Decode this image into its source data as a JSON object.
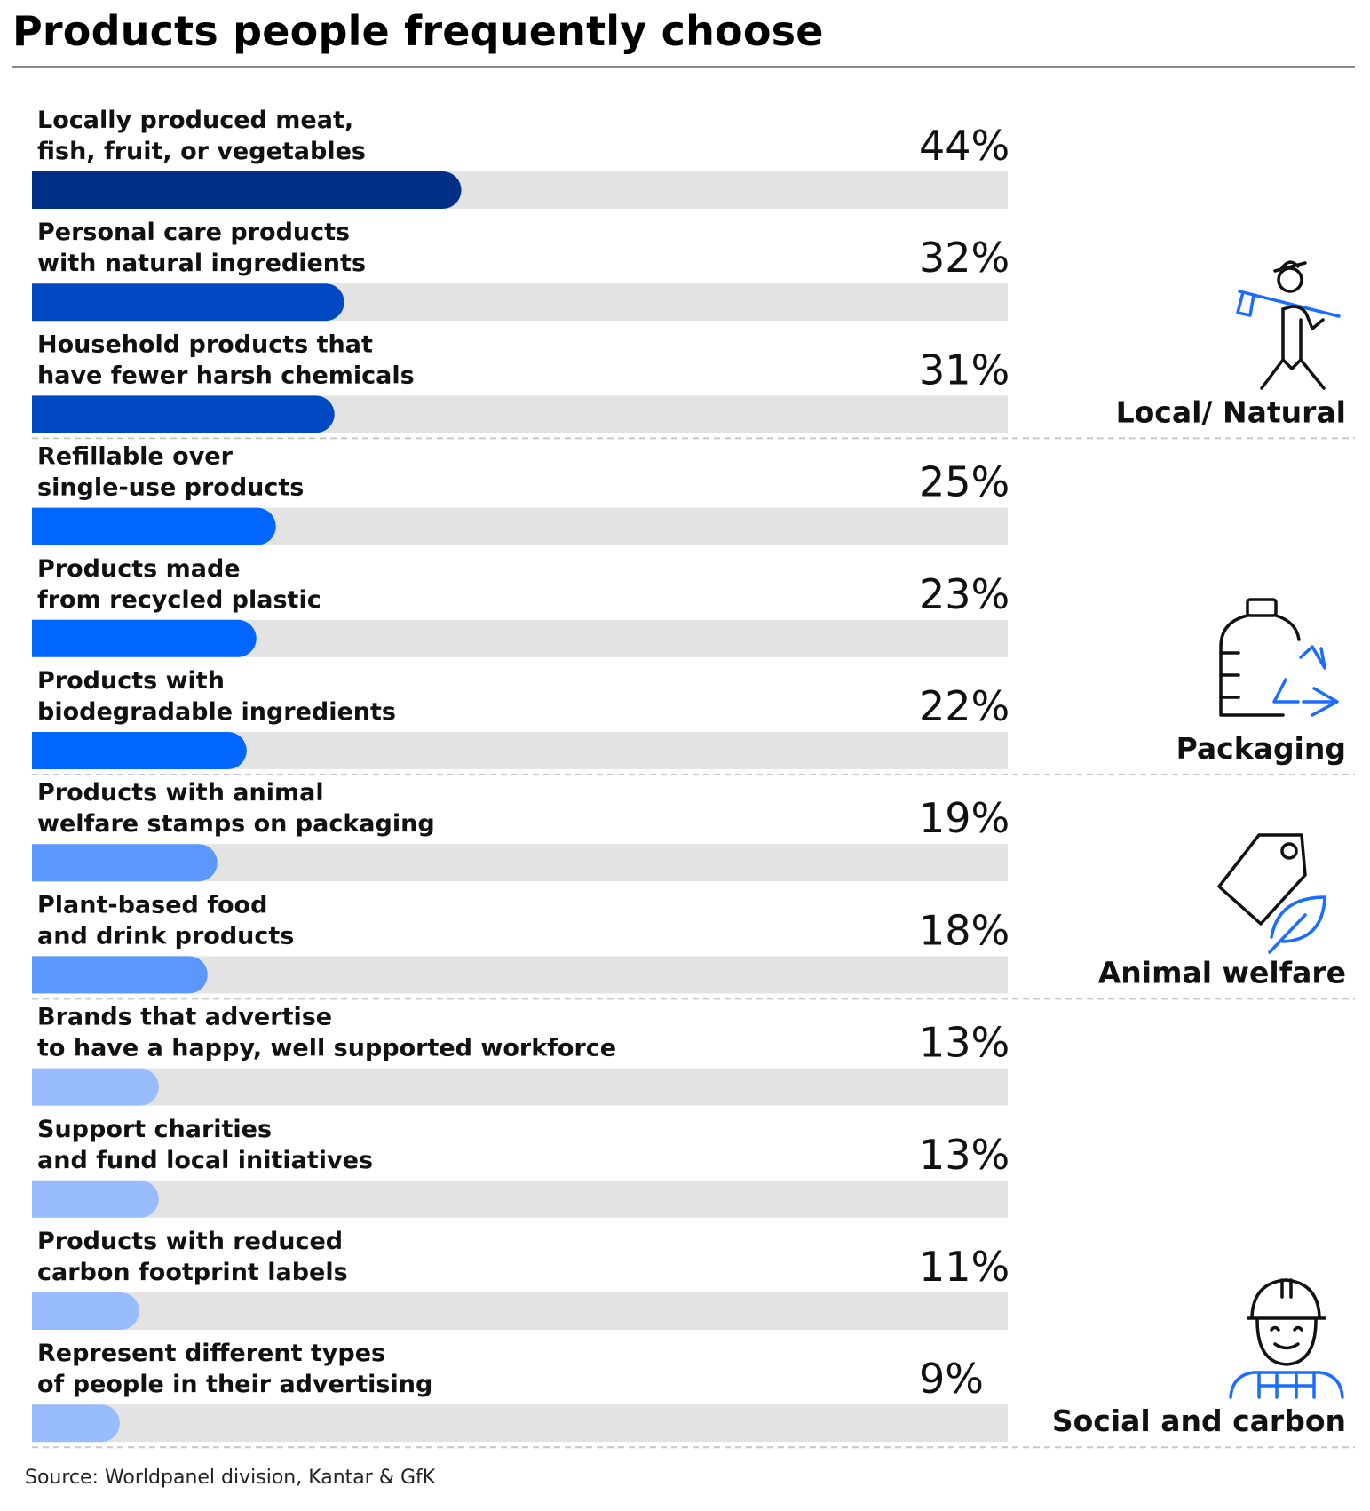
{
  "title": "Products people frequently choose",
  "source": "Source: Worldpanel division, Kantar & GfK",
  "colors": {
    "track": "#e3e3e3",
    "local_natural": [
      "#002f86",
      "#0049c2",
      "#0049c2"
    ],
    "packaging": "#0066ff",
    "animal_welfare": "#5c97ff",
    "social_carbon": "#99bcff",
    "icon_dark": "#111111",
    "icon_blue": "#1a6dff"
  },
  "chart_data": {
    "type": "bar",
    "orientation": "horizontal",
    "unit": "%",
    "xlim": [
      0,
      100
    ],
    "categories": [
      [
        "Locally produced meat,",
        "fish, fruit, or vegetables"
      ],
      [
        "Personal care products",
        "with natural ingredients"
      ],
      [
        "Household products that",
        "have fewer harsh chemicals"
      ],
      [
        "Refillable over",
        "single-use products"
      ],
      [
        "Products made",
        "from recycled plastic"
      ],
      [
        "Products with",
        "biodegradable ingredients"
      ],
      [
        "Products with animal",
        "welfare stamps on packaging"
      ],
      [
        "Plant-based food",
        "and drink products"
      ],
      [
        "Brands that advertise",
        "to have a happy, well supported workforce"
      ],
      [
        "Support charities",
        "and fund local initiatives"
      ],
      [
        "Products with reduced",
        "carbon footprint labels"
      ],
      [
        "Represent different types",
        "of people in their advertising"
      ]
    ],
    "values": [
      44,
      32,
      31,
      25,
      23,
      22,
      19,
      18,
      13,
      13,
      11,
      9
    ],
    "value_labels": [
      "44%",
      "32%",
      "31%",
      "25%",
      "23%",
      "22%",
      "19%",
      "18%",
      "13%",
      "13%",
      "11%",
      "9%"
    ],
    "groups": [
      {
        "name": "Local/ Natural",
        "icon": "farmer-icon",
        "rows": [
          0,
          1,
          2
        ]
      },
      {
        "name": "Packaging",
        "icon": "recycled-bottle-icon",
        "rows": [
          3,
          4,
          5
        ]
      },
      {
        "name": "Animal welfare",
        "icon": "leaf-tag-icon",
        "rows": [
          6,
          7
        ]
      },
      {
        "name": "Social and carbon",
        "icon": "worker-icon",
        "rows": [
          8,
          9,
          10,
          11
        ]
      }
    ]
  }
}
